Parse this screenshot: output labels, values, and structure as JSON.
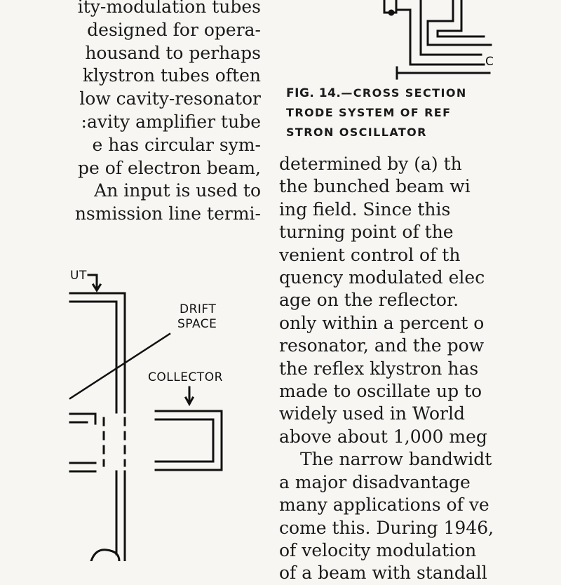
{
  "left_column": {
    "lines": [
      "ity-modulation tubes",
      "designed for opera-",
      "housand to perhaps",
      "klystron tubes often",
      "low cavity-resonator",
      ":avity amplifier tube",
      "e has circular sym-",
      "pe of electron beam,",
      "An input is used to",
      "nsmission line termi-"
    ]
  },
  "figure_caption": {
    "fig_label": "FIG. 14.",
    "line1_rest": "—CROSS SECTION",
    "line2": "TRODE SYSTEM OF REF",
    "line3": "STRON OSCILLATOR"
  },
  "right_column": {
    "lines": [
      "determined by (a) th",
      "the bunched beam wi",
      "ing field.  Since this",
      "turning point of the",
      "venient control of th",
      "quency modulated elec",
      "age on the reflector.",
      "only within a percent o",
      "resonator, and the pow",
      "the reflex klystron has",
      "made to oscillate up to",
      "widely used in World",
      "above about 1,000 meg",
      "The narrow bandwidt",
      "a major disadvantage",
      "many applications of ve",
      "come this.  During 1946,",
      "of velocity modulation",
      "of a beam with standall"
    ]
  },
  "diagram_labels": {
    "input_partial": "UT",
    "drift_space_1": "DRIFT",
    "drift_space_2": "SPACE",
    "collector": "COLLECTOR",
    "top_right_partial": "C"
  }
}
